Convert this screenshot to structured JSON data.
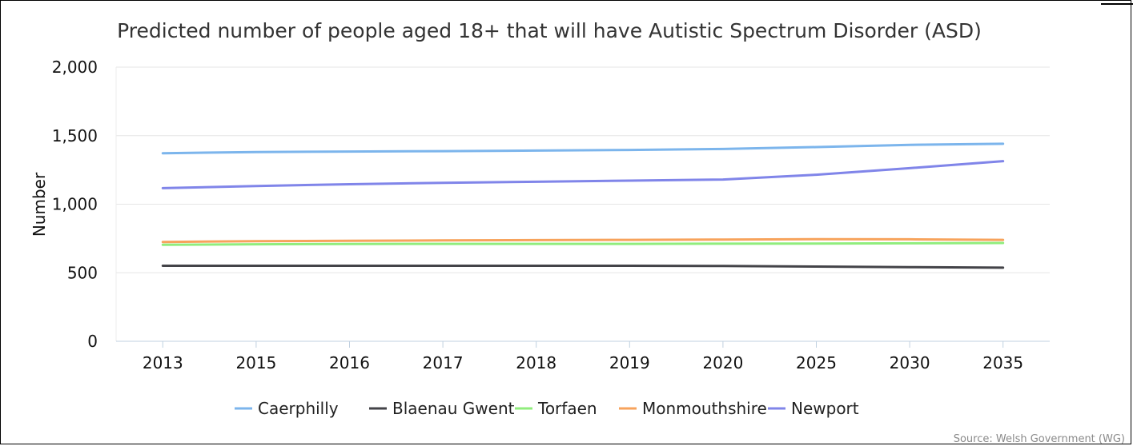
{
  "chart_data": {
    "type": "line",
    "title": "Predicted number of people aged 18+ that will have Autistic Spectrum Disorder (ASD)",
    "xlabel": "",
    "ylabel": "Number",
    "categories": [
      "2013",
      "2015",
      "2016",
      "2017",
      "2018",
      "2019",
      "2020",
      "2025",
      "2030",
      "2035"
    ],
    "y_ticks": [
      "0",
      "500",
      "1,000",
      "1,500",
      "2,000"
    ],
    "y_tick_values": [
      0,
      500,
      1000,
      1500,
      2000
    ],
    "ylim": [
      0,
      2000
    ],
    "grid": "horizontal",
    "legend_position": "bottom",
    "source": "Source: Welsh Government (WG)",
    "series": [
      {
        "name": "Caerphilly",
        "color": "#7cb5ec",
        "values": [
          1372,
          1381,
          1384,
          1387,
          1391,
          1396,
          1403,
          1417,
          1433,
          1441
        ]
      },
      {
        "name": "Blaenau Gwent",
        "color": "#434348",
        "values": [
          551,
          551,
          551,
          551,
          551,
          551,
          549,
          545,
          541,
          537
        ]
      },
      {
        "name": "Torfaen",
        "color": "#90ed7d",
        "values": [
          704,
          708,
          710,
          711,
          711,
          711,
          712,
          713,
          715,
          717
        ]
      },
      {
        "name": "Monmouthshire",
        "color": "#f7a35c",
        "values": [
          725,
          730,
          733,
          736,
          738,
          740,
          742,
          745,
          744,
          740
        ]
      },
      {
        "name": "Newport",
        "color": "#8085e9",
        "values": [
          1117,
          1133,
          1146,
          1156,
          1164,
          1172,
          1180,
          1215,
          1263,
          1314
        ]
      }
    ]
  }
}
